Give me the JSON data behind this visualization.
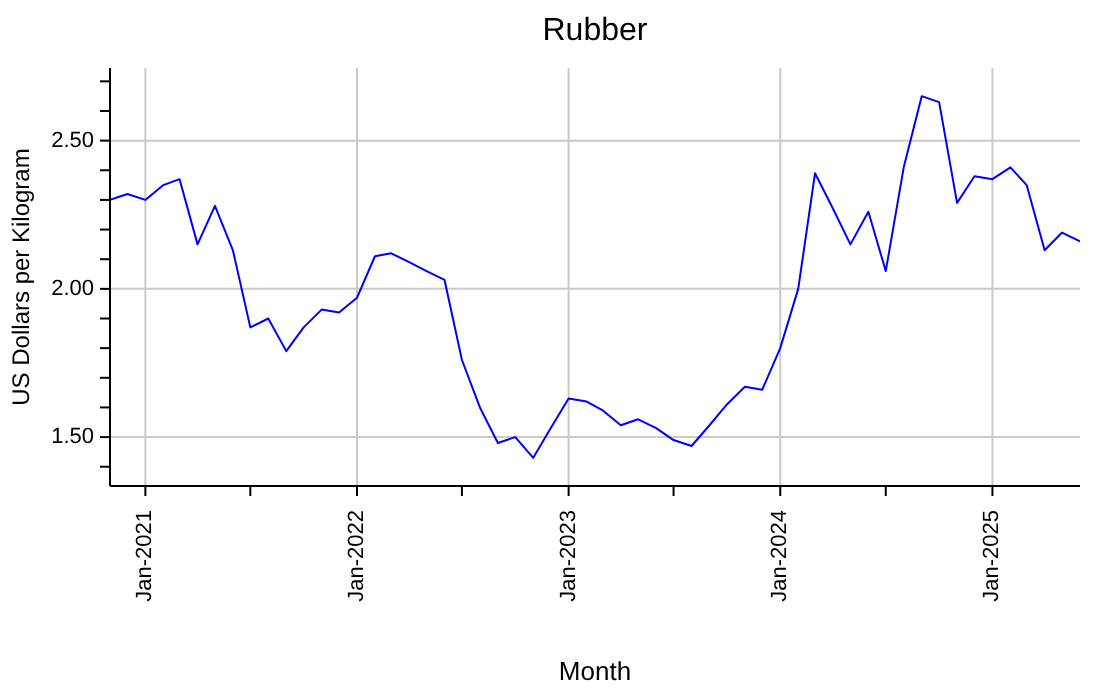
{
  "chart_data": {
    "type": "line",
    "title": "Rubber",
    "xlabel": "Month",
    "ylabel": "US Dollars per Kilogram",
    "x": [
      "2020-11",
      "2020-12",
      "2021-01",
      "2021-02",
      "2021-03",
      "2021-04",
      "2021-05",
      "2021-06",
      "2021-07",
      "2021-08",
      "2021-09",
      "2021-10",
      "2021-11",
      "2021-12",
      "2022-01",
      "2022-02",
      "2022-03",
      "2022-04",
      "2022-05",
      "2022-06",
      "2022-07",
      "2022-08",
      "2022-09",
      "2022-10",
      "2022-11",
      "2022-12",
      "2023-01",
      "2023-02",
      "2023-03",
      "2023-04",
      "2023-05",
      "2023-06",
      "2023-07",
      "2023-08",
      "2023-09",
      "2023-10",
      "2023-11",
      "2023-12",
      "2024-01",
      "2024-02",
      "2024-03",
      "2024-04",
      "2024-05",
      "2024-06",
      "2024-07",
      "2024-08",
      "2024-09",
      "2024-10",
      "2024-11",
      "2024-12",
      "2025-01",
      "2025-02",
      "2025-03",
      "2025-04",
      "2025-05",
      "2025-06"
    ],
    "series": [
      {
        "color": "#0000ff",
        "values": [
          2.3,
          2.32,
          2.3,
          2.35,
          2.37,
          2.15,
          2.28,
          2.13,
          1.87,
          1.9,
          1.79,
          1.87,
          1.93,
          1.92,
          1.97,
          2.11,
          2.12,
          2.09,
          2.06,
          2.03,
          1.76,
          1.6,
          1.48,
          1.5,
          1.43,
          1.53,
          1.63,
          1.62,
          1.59,
          1.54,
          1.56,
          1.53,
          1.49,
          1.47,
          1.54,
          1.61,
          1.67,
          1.66,
          1.8,
          2.0,
          2.39,
          2.27,
          2.15,
          2.26,
          2.06,
          2.41,
          2.65,
          2.63,
          2.29,
          2.38,
          2.37,
          2.41,
          2.35,
          2.13,
          2.19,
          2.16
        ]
      }
    ],
    "xlim": [
      "2020-11",
      "2025-06"
    ],
    "xticks": [
      {
        "value": "2021-01",
        "label": "Jan-2021"
      },
      {
        "value": "2021-07",
        "label": null
      },
      {
        "value": "2022-01",
        "label": "Jan-2022"
      },
      {
        "value": "2022-07",
        "label": null
      },
      {
        "value": "2023-01",
        "label": "Jan-2023"
      },
      {
        "value": "2023-07",
        "label": null
      },
      {
        "value": "2024-01",
        "label": "Jan-2024"
      },
      {
        "value": "2024-07",
        "label": null
      },
      {
        "value": "2025-01",
        "label": "Jan-2025"
      }
    ],
    "ylim": [
      1.335,
      2.745
    ],
    "yticks": [
      {
        "value": 1.4,
        "label": null
      },
      {
        "value": 1.5,
        "label": "1.50"
      },
      {
        "value": 1.6,
        "label": null
      },
      {
        "value": 1.7,
        "label": null
      },
      {
        "value": 1.8,
        "label": null
      },
      {
        "value": 1.9,
        "label": null
      },
      {
        "value": 2.0,
        "label": "2.00"
      },
      {
        "value": 2.1,
        "label": null
      },
      {
        "value": 2.2,
        "label": null
      },
      {
        "value": 2.3,
        "label": null
      },
      {
        "value": 2.4,
        "label": null
      },
      {
        "value": 2.5,
        "label": "2.50"
      },
      {
        "value": 2.6,
        "label": null
      },
      {
        "value": 2.7,
        "label": null
      }
    ],
    "grid": true,
    "legend": false,
    "marker": "none",
    "line_style": "solid"
  }
}
